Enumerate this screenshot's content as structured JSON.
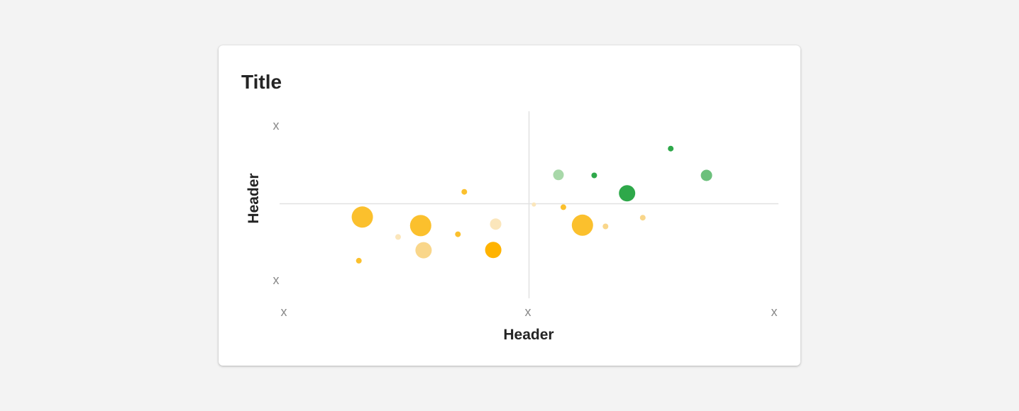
{
  "card": {
    "title": "Title"
  },
  "chart_data": {
    "type": "scatter",
    "title": "Title",
    "xlabel": "Header",
    "ylabel": "Header",
    "x_tick_labels": [
      "x",
      "x",
      "x"
    ],
    "y_tick_labels": [
      "x",
      "x"
    ],
    "xlim": [
      0,
      100
    ],
    "ylim": [
      0,
      100
    ],
    "grid": false,
    "crosshair": {
      "x": 50,
      "y": 50
    },
    "colors": {
      "yellow": "#fbc02d",
      "yellow_light": "#f9d68a",
      "yellow_pale": "#fbe6bb",
      "orange": "#ffb300",
      "green": "#2ea84a",
      "green_mid": "#6cc07c",
      "green_light": "#a8d8a9"
    },
    "points": [
      {
        "x": 16.0,
        "y": 41.5,
        "size": 30,
        "color": "yellow"
      },
      {
        "x": 27.9,
        "y": 36.0,
        "size": 30,
        "color": "yellow"
      },
      {
        "x": 28.5,
        "y": 20.3,
        "size": 23,
        "color": "yellow_light"
      },
      {
        "x": 42.7,
        "y": 20.5,
        "size": 23,
        "color": "orange"
      },
      {
        "x": 43.2,
        "y": 37.0,
        "size": 16,
        "color": "yellow_pale"
      },
      {
        "x": 36.8,
        "y": 57.6,
        "size": 8,
        "color": "yellow"
      },
      {
        "x": 35.5,
        "y": 30.5,
        "size": 8,
        "color": "yellow"
      },
      {
        "x": 23.3,
        "y": 28.8,
        "size": 8,
        "color": "yellow_pale"
      },
      {
        "x": 15.3,
        "y": 13.6,
        "size": 8,
        "color": "yellow"
      },
      {
        "x": 51.0,
        "y": 49.5,
        "size": 6,
        "color": "yellow_pale"
      },
      {
        "x": 57.0,
        "y": 47.8,
        "size": 8,
        "color": "yellow"
      },
      {
        "x": 60.9,
        "y": 36.3,
        "size": 30,
        "color": "yellow"
      },
      {
        "x": 65.6,
        "y": 35.5,
        "size": 8,
        "color": "yellow_light"
      },
      {
        "x": 73.2,
        "y": 41.1,
        "size": 8,
        "color": "yellow_light"
      },
      {
        "x": 56.0,
        "y": 68.4,
        "size": 15,
        "color": "green_light"
      },
      {
        "x": 63.3,
        "y": 68.1,
        "size": 8,
        "color": "green"
      },
      {
        "x": 70.0,
        "y": 56.7,
        "size": 23,
        "color": "green"
      },
      {
        "x": 78.9,
        "y": 85.2,
        "size": 8,
        "color": "green"
      },
      {
        "x": 86.2,
        "y": 68.1,
        "size": 16,
        "color": "green_mid"
      }
    ]
  }
}
